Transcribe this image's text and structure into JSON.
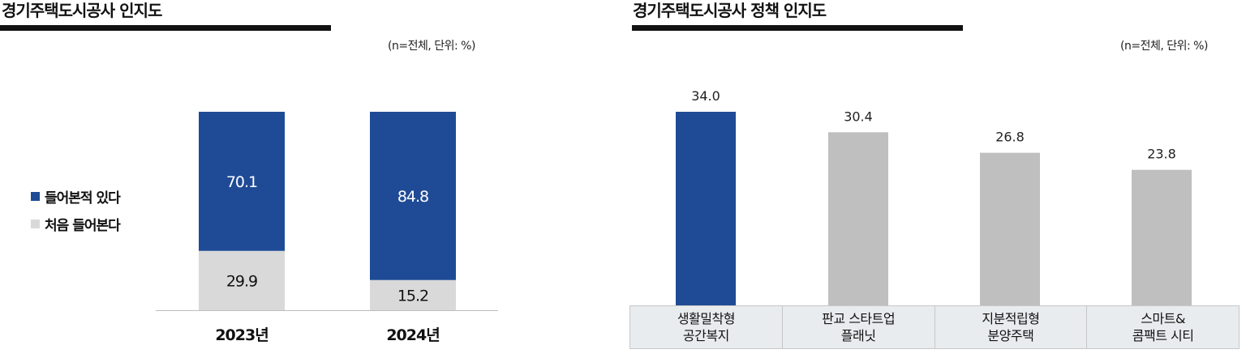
{
  "left_panel": {
    "title": "경기주택도시공사 인지도",
    "unit_note": "(n=전체, 단위: %)",
    "legend": [
      {
        "label": "들어본적 있다",
        "color": "#1f4b96"
      },
      {
        "label": "처음 들어본다",
        "color": "#d9d9d9"
      }
    ]
  },
  "right_panel": {
    "title": "경기주택도시공사 정책 인지도",
    "unit_note": "(n=전체, 단위: %)",
    "categories": [
      "생활밀착형\n공간복지",
      "판교 스타트업\n플래닛",
      "지분적립형\n분양주택",
      "스마트&\n콤팩트 시티"
    ]
  },
  "chart_data": [
    {
      "type": "bar",
      "stacked": true,
      "title": "경기주택도시공사 인지도",
      "categories": [
        "2023년",
        "2024년"
      ],
      "series": [
        {
          "name": "들어본적 있다",
          "values": [
            70.1,
            84.8
          ],
          "color": "#1f4b96"
        },
        {
          "name": "처음 들어본다",
          "values": [
            29.9,
            15.2
          ],
          "color": "#d9d9d9"
        }
      ],
      "ylim": [
        0,
        100
      ],
      "legend_position": "left"
    },
    {
      "type": "bar",
      "title": "경기주택도시공사 정책 인지도",
      "categories": [
        "생활밀착형 공간복지",
        "판교 스타트업 플래닛",
        "지분적립형 분양주택",
        "스마트& 콤팩트 시티"
      ],
      "values": [
        34.0,
        30.4,
        26.8,
        23.8
      ],
      "colors": [
        "#1f4b96",
        "#bfbfbf",
        "#bfbfbf",
        "#bfbfbf"
      ],
      "ylim": [
        0,
        34.0
      ]
    }
  ]
}
